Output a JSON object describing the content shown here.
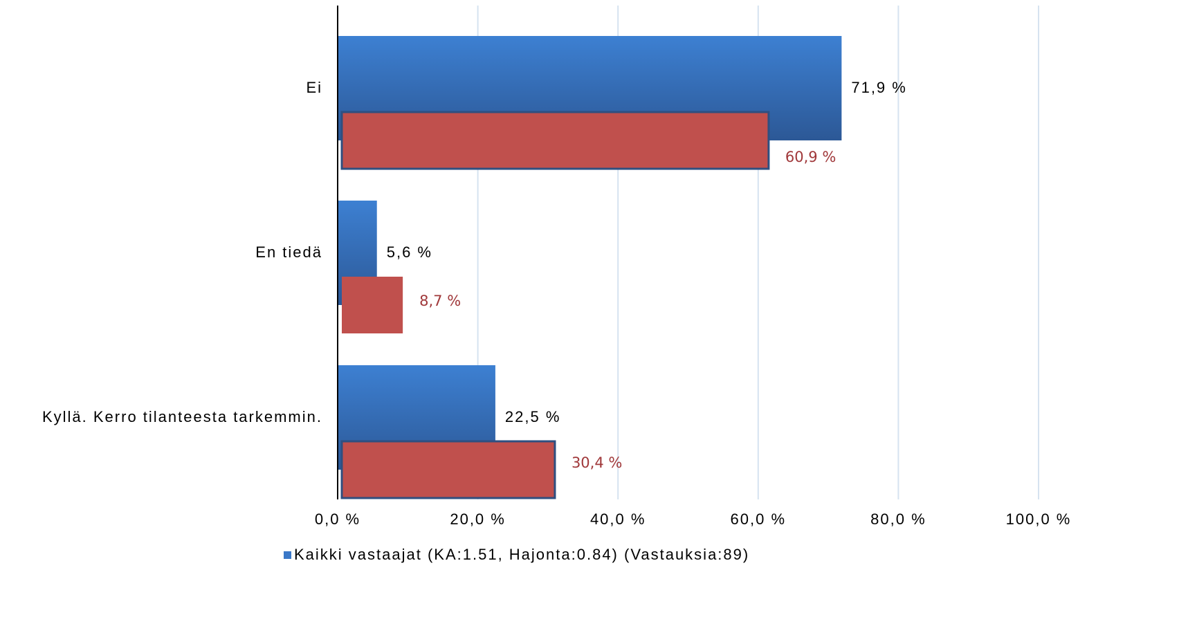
{
  "chart_data": {
    "type": "bar",
    "orientation": "horizontal",
    "categories": [
      "Ei",
      "En tiedä",
      "Kyllä. Kerro tilanteesta tarkemmin."
    ],
    "series": [
      {
        "name": "Kaikki vastaajat (KA:1.51, Hajonta:0.84) (Vastauksia:89)",
        "color": "#3a78c8",
        "values": [
          71.9,
          5.6,
          22.5
        ],
        "value_labels": [
          "71,9 %",
          "5,6 %",
          "22,5 %"
        ]
      },
      {
        "color": "#c0504d",
        "values": [
          60.9,
          8.7,
          30.4
        ],
        "value_labels": [
          "60,9 %",
          "8,7 %",
          "30,4 %"
        ]
      }
    ],
    "xlim": [
      0,
      100
    ],
    "xticks": [
      {
        "value": 0,
        "label": "0,0 %"
      },
      {
        "value": 20,
        "label": "20,0 %"
      },
      {
        "value": 40,
        "label": "40,0 %"
      },
      {
        "value": 60,
        "label": "60,0 %"
      },
      {
        "value": 80,
        "label": "80,0 %"
      },
      {
        "value": 100,
        "label": "100,0 %"
      }
    ],
    "grid": true,
    "legend": "bottom"
  }
}
